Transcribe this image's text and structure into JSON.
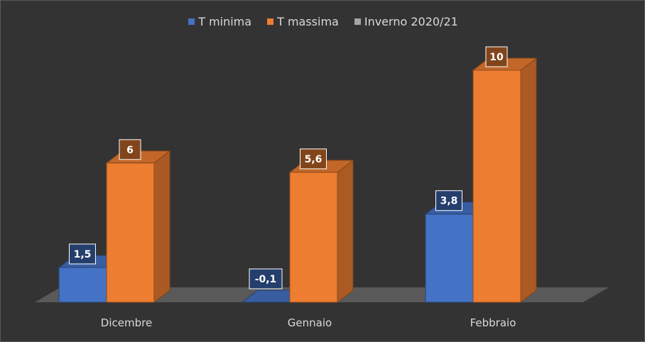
{
  "chart_data": {
    "type": "bar",
    "title": "",
    "xlabel": "",
    "ylabel": "",
    "categories": [
      "Dicembre",
      "Gennaio",
      "Febbraio"
    ],
    "series": [
      {
        "name": "T minima",
        "values": [
          1.5,
          -0.1,
          3.8
        ],
        "labels": [
          "1,5",
          "-0,1",
          "3,8"
        ],
        "color": "#4472c4"
      },
      {
        "name": "T massima",
        "values": [
          6,
          5.6,
          10
        ],
        "labels": [
          "6",
          "5,6",
          "10"
        ],
        "color": "#ed7d31"
      },
      {
        "name": "Inverno 2020/21",
        "values": [
          null,
          null,
          null
        ],
        "labels": [
          "",
          "",
          ""
        ],
        "color": "#a5a5a5"
      }
    ],
    "ylim": [
      0,
      10
    ],
    "grid": false,
    "legend": "top-center",
    "style": "3d-column"
  }
}
